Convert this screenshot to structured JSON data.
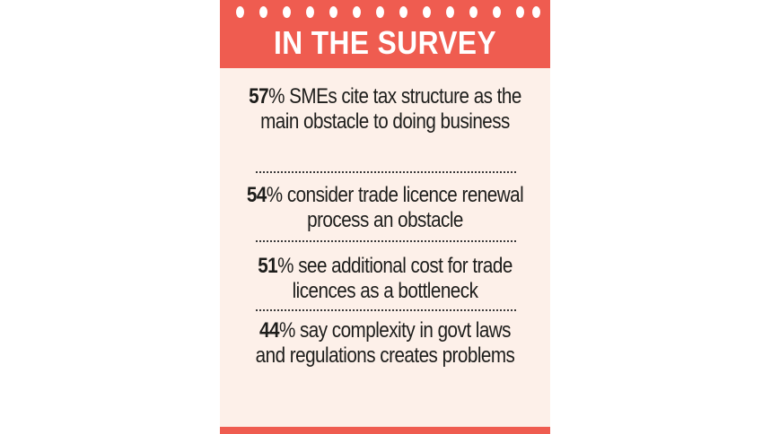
{
  "header": {
    "title": "IN THE SURVEY"
  },
  "items": [
    {
      "percent": "57",
      "unit": "%",
      "text": " SMEs cite tax structure as the main obstacle to doing business"
    },
    {
      "percent": "54",
      "unit": "%",
      "text": " consider trade licence renewal process an obstacle"
    },
    {
      "percent": "51",
      "unit": "%",
      "text": " see additional cost for trade licences as a bottleneck"
    },
    {
      "percent": "44",
      "unit": "%",
      "text": " say complexity in govt laws and regulations creates problems"
    }
  ],
  "colors": {
    "accent": "#ef5c50",
    "panel_background": "#fdf0e9",
    "text": "#1d1d1b"
  }
}
